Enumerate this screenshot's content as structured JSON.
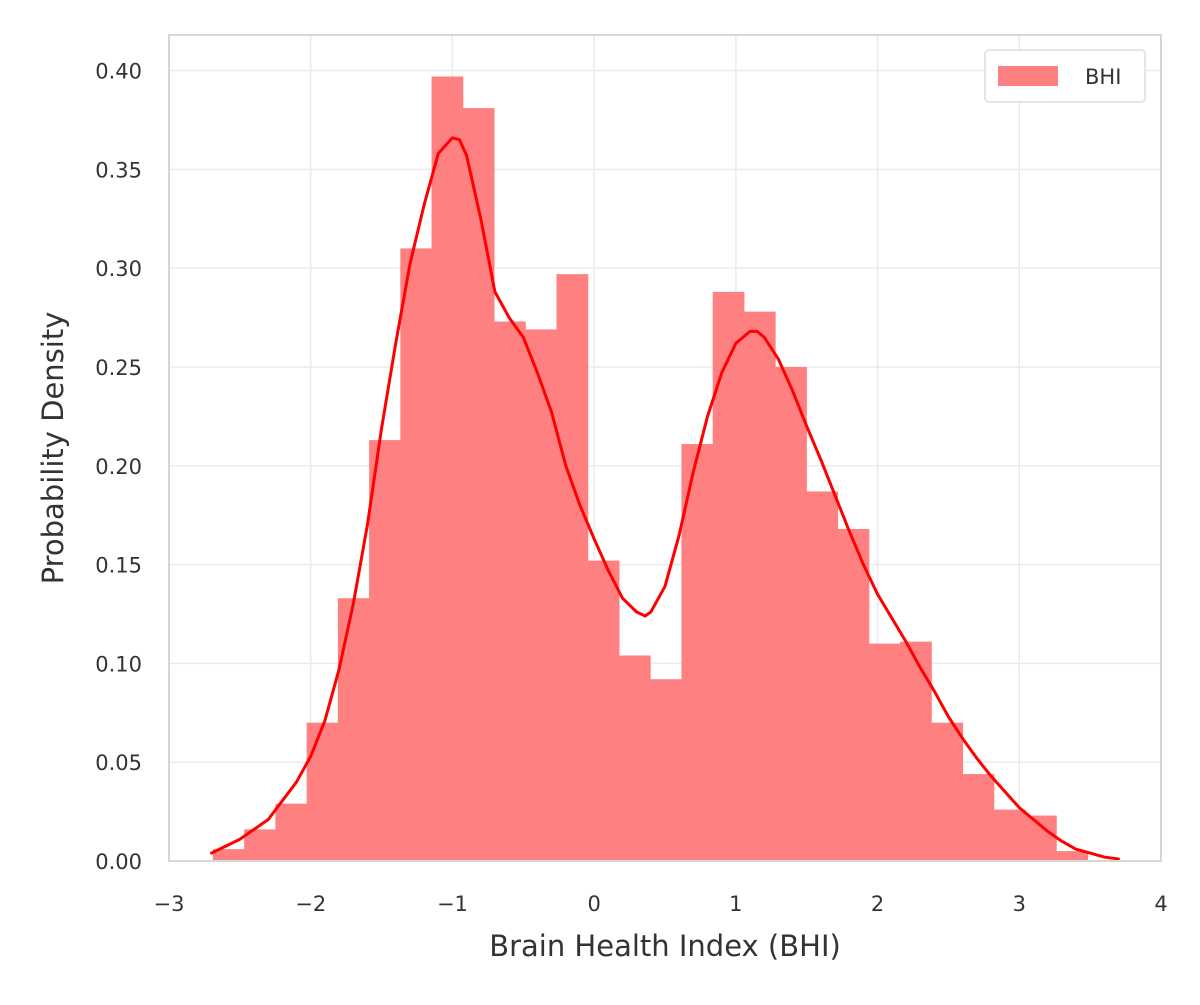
{
  "chart_data": {
    "type": "histogram",
    "title": "",
    "xlabel": "Brain Health Index (BHI)",
    "ylabel": "Probability Density",
    "xlim": [
      -3,
      4
    ],
    "ylim": [
      0,
      0.418
    ],
    "xticks": [
      -3,
      -2,
      -1,
      0,
      1,
      2,
      3,
      4
    ],
    "xtick_labels": [
      "−3",
      "−2",
      "−1",
      "0",
      "1",
      "2",
      "3",
      "4"
    ],
    "yticks": [
      0.0,
      0.05,
      0.1,
      0.15,
      0.2,
      0.25,
      0.3,
      0.35,
      0.4
    ],
    "ytick_labels": [
      "0.00",
      "0.05",
      "0.10",
      "0.15",
      "0.20",
      "0.25",
      "0.30",
      "0.35",
      "0.40"
    ],
    "grid": true,
    "legend_placement": "top-right",
    "series": [
      {
        "name": "BHI",
        "kind": "histogram",
        "color": "#ff8080",
        "bin_start": -2.69,
        "bin_width": 0.2204,
        "values": [
          0.006,
          0.016,
          0.029,
          0.07,
          0.133,
          0.213,
          0.31,
          0.397,
          0.381,
          0.273,
          0.269,
          0.297,
          0.152,
          0.104,
          0.092,
          0.211,
          0.288,
          0.278,
          0.25,
          0.187,
          0.168,
          0.11,
          0.111,
          0.07,
          0.044,
          0.026,
          0.023,
          0.005
        ]
      },
      {
        "name": "KDE",
        "kind": "line",
        "color": "#ff0000",
        "x": [
          -2.7,
          -2.5,
          -2.3,
          -2.1,
          -2.0,
          -1.9,
          -1.8,
          -1.7,
          -1.6,
          -1.5,
          -1.4,
          -1.3,
          -1.2,
          -1.1,
          -1.0,
          -0.95,
          -0.9,
          -0.8,
          -0.7,
          -0.6,
          -0.5,
          -0.4,
          -0.3,
          -0.2,
          -0.1,
          0.0,
          0.1,
          0.2,
          0.3,
          0.36,
          0.4,
          0.5,
          0.6,
          0.7,
          0.8,
          0.9,
          1.0,
          1.1,
          1.15,
          1.2,
          1.3,
          1.4,
          1.5,
          1.6,
          1.7,
          1.8,
          1.9,
          2.0,
          2.1,
          2.2,
          2.3,
          2.4,
          2.5,
          2.6,
          2.7,
          2.8,
          2.9,
          3.0,
          3.1,
          3.2,
          3.3,
          3.4,
          3.5,
          3.6,
          3.7
        ],
        "y": [
          0.004,
          0.011,
          0.021,
          0.04,
          0.053,
          0.071,
          0.097,
          0.13,
          0.17,
          0.219,
          0.262,
          0.302,
          0.332,
          0.358,
          0.366,
          0.365,
          0.357,
          0.325,
          0.288,
          0.275,
          0.265,
          0.247,
          0.227,
          0.2,
          0.18,
          0.163,
          0.147,
          0.133,
          0.126,
          0.124,
          0.126,
          0.139,
          0.165,
          0.197,
          0.225,
          0.247,
          0.262,
          0.268,
          0.268,
          0.265,
          0.254,
          0.238,
          0.22,
          0.203,
          0.185,
          0.167,
          0.15,
          0.135,
          0.123,
          0.111,
          0.098,
          0.086,
          0.073,
          0.062,
          0.052,
          0.043,
          0.035,
          0.027,
          0.021,
          0.015,
          0.01,
          0.006,
          0.004,
          0.002,
          0.001
        ]
      }
    ]
  }
}
